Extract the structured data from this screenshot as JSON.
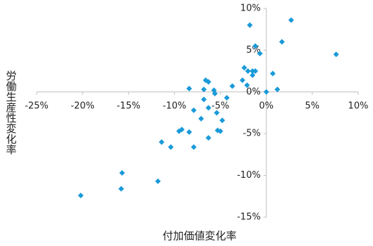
{
  "chart_data": {
    "type": "scatter",
    "xlabel": "付加価値変化率",
    "ylabel": "労働生産性変化率",
    "color": "#1a9ad9",
    "xlim": [
      -25,
      10
    ],
    "ylim": [
      -15,
      10
    ],
    "xticks": [
      {
        "value": -25,
        "label": "-25%"
      },
      {
        "value": -20,
        "label": "-20%"
      },
      {
        "value": -15,
        "label": "-15%"
      },
      {
        "value": -10,
        "label": "-10%"
      },
      {
        "value": -5,
        "label": "-5%"
      },
      {
        "value": 0,
        "label": "0%"
      },
      {
        "value": 5,
        "label": "5%"
      },
      {
        "value": 10,
        "label": "10%"
      }
    ],
    "yticks": [
      {
        "value": -15,
        "label": "-15%"
      },
      {
        "value": -10,
        "label": "-10%"
      },
      {
        "value": -5,
        "label": "-5%"
      },
      {
        "value": 0,
        "label": "0%"
      },
      {
        "value": 5,
        "label": "5%"
      },
      {
        "value": 10,
        "label": "10%"
      }
    ],
    "grid": false,
    "x": [
      2.7,
      -1.8,
      -1.2,
      -0.7,
      1.7,
      7.6,
      -2.4,
      -2.0,
      -1.5,
      -1.2,
      -1.5,
      0.7,
      -2.6,
      -2.1,
      -3.7,
      -6.6,
      -6.3,
      -8.4,
      -6.8,
      -5.7,
      0,
      1.2,
      -5.6,
      -4.3,
      -6.8,
      -6.3,
      -5.4,
      -7.9,
      -4.8,
      -7.1,
      -8.4,
      -5.3,
      -5.0,
      -9.2,
      -9.5,
      -6.3,
      -11.4,
      -10.4,
      -7.9,
      -15.7,
      -11.8,
      -15.8,
      -20.2
    ],
    "values": [
      8.6,
      8.0,
      5.5,
      4.6,
      6.0,
      4.5,
      2.9,
      2.5,
      2.5,
      2.5,
      2.0,
      2.2,
      1.4,
      0.8,
      0.7,
      1.4,
      1.2,
      0.4,
      0.3,
      0.2,
      0,
      0.3,
      -0.2,
      -0.7,
      -0.9,
      -1.9,
      -2.5,
      -2.2,
      -3.4,
      -3.2,
      -4.8,
      -4.6,
      -4.7,
      -4.5,
      -4.7,
      -5.5,
      -6.0,
      -6.6,
      -6.6,
      -9.7,
      -10.7,
      -11.6,
      -12.4
    ]
  }
}
